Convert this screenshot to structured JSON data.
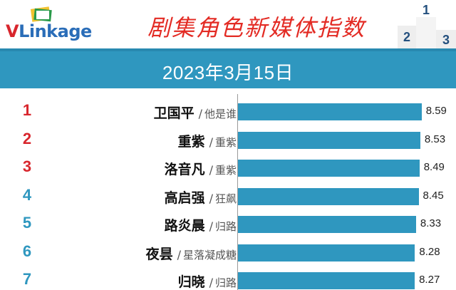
{
  "header": {
    "logo_text_v": "V",
    "logo_text_rest": "Linkage",
    "title": "剧集角色新媒体指数",
    "podium_digits": [
      "2",
      "1",
      "3"
    ]
  },
  "date_band": {
    "date": "2023年3月15日"
  },
  "colors": {
    "bar": "#2f97bf",
    "band": "#2f97bf",
    "title": "#e32b24",
    "rank_top3": "#d8262d",
    "rank_other": "#2f97bf"
  },
  "chart_data": {
    "type": "bar",
    "orientation": "horizontal",
    "xlim": [
      0,
      10
    ],
    "rows": [
      {
        "rank": "1",
        "name": "卫国平",
        "drama": "他是谁",
        "value": 8.59,
        "value_label": "8.59"
      },
      {
        "rank": "2",
        "name": "重紫",
        "drama": "重紫",
        "value": 8.53,
        "value_label": "8.53"
      },
      {
        "rank": "3",
        "name": "洛音凡",
        "drama": "重紫",
        "value": 8.49,
        "value_label": "8.49"
      },
      {
        "rank": "4",
        "name": "高启强",
        "drama": "狂飙",
        "value": 8.45,
        "value_label": "8.45"
      },
      {
        "rank": "5",
        "name": "路炎晨",
        "drama": "归路",
        "value": 8.33,
        "value_label": "8.33"
      },
      {
        "rank": "6",
        "name": "夜昙",
        "drama": "星落凝成糖",
        "value": 8.28,
        "value_label": "8.28"
      },
      {
        "rank": "7",
        "name": "归晓",
        "drama": "归路",
        "value": 8.27,
        "value_label": "8.27"
      }
    ]
  }
}
